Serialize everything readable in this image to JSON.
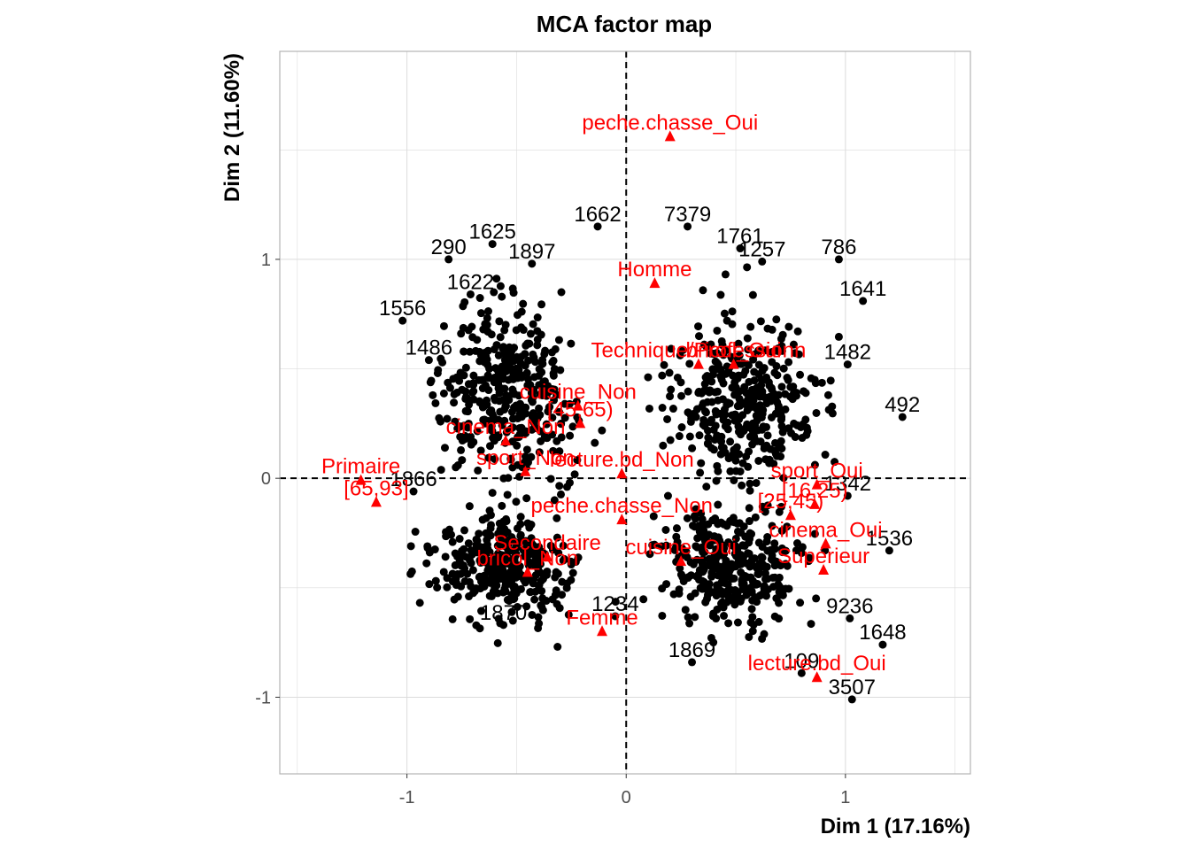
{
  "chart_data": {
    "type": "scatter",
    "title": "MCA factor map",
    "xlabel": "Dim 1 (17.16%)",
    "ylabel": "Dim 2 (11.60%)",
    "xlim": [
      -1.58,
      1.57
    ],
    "ylim": [
      -1.35,
      1.95
    ],
    "xticks": [
      -1,
      0,
      1
    ],
    "yticks": [
      -1,
      0,
      1
    ],
    "reference_lines": {
      "x": 0,
      "y": 0,
      "style": "dashed"
    },
    "grid": true,
    "colors": {
      "individuals": "#000000",
      "categories": "#ff0000",
      "grid": "#dcdcdc",
      "panel_border": "#b3b3b3"
    },
    "categories": [
      {
        "label": "peche.chasse_Oui",
        "x": 0.2,
        "y": 1.56
      },
      {
        "label": "Homme",
        "x": 0.13,
        "y": 0.89
      },
      {
        "label": "Technique/Professionn",
        "x": 0.33,
        "y": 0.52
      },
      {
        "label": "bricol_Oui",
        "x": 0.49,
        "y": 0.52
      },
      {
        "label": "cuisine_Non",
        "x": -0.22,
        "y": 0.33
      },
      {
        "label": "[45,65)",
        "x": -0.21,
        "y": 0.25
      },
      {
        "label": "cinema_Non",
        "x": -0.55,
        "y": 0.17
      },
      {
        "label": "sport_Non",
        "x": -0.46,
        "y": 0.03
      },
      {
        "label": "lecture.bd_Non",
        "x": -0.02,
        "y": 0.02
      },
      {
        "label": "Primaire",
        "x": -1.21,
        "y": -0.01
      },
      {
        "label": "[65,93]",
        "x": -1.14,
        "y": -0.11
      },
      {
        "label": "sport_Oui",
        "x": 0.87,
        "y": -0.03
      },
      {
        "label": "[16,25)",
        "x": 0.86,
        "y": -0.12
      },
      {
        "label": "[25,45)",
        "x": 0.75,
        "y": -0.17
      },
      {
        "label": "peche.chasse_Non",
        "x": -0.02,
        "y": -0.19
      },
      {
        "label": "Secondaire",
        "x": -0.36,
        "y": -0.36
      },
      {
        "label": "cinema_Oui",
        "x": 0.91,
        "y": -0.3
      },
      {
        "label": "bricol_Non",
        "x": -0.45,
        "y": -0.43
      },
      {
        "label": "cuisine_Oui",
        "x": 0.25,
        "y": -0.38
      },
      {
        "label": "Supérieur",
        "x": 0.9,
        "y": -0.42
      },
      {
        "label": "Femme",
        "x": -0.11,
        "y": -0.7
      },
      {
        "label": "lecture.bd_Oui",
        "x": 0.87,
        "y": -0.91
      }
    ],
    "labelled_individuals": [
      {
        "label": "1662",
        "x": -0.13,
        "y": 1.15
      },
      {
        "label": "7379",
        "x": 0.28,
        "y": 1.15
      },
      {
        "label": "1625",
        "x": -0.61,
        "y": 1.07
      },
      {
        "label": "1761",
        "x": 0.52,
        "y": 1.05
      },
      {
        "label": "290",
        "x": -0.81,
        "y": 1.0
      },
      {
        "label": "1897",
        "x": -0.43,
        "y": 0.98
      },
      {
        "label": "786",
        "x": 0.97,
        "y": 1.0
      },
      {
        "label": "1257",
        "x": 0.62,
        "y": 0.99
      },
      {
        "label": "1622",
        "x": -0.71,
        "y": 0.84
      },
      {
        "label": "1641",
        "x": 1.08,
        "y": 0.81
      },
      {
        "label": "1556",
        "x": -1.02,
        "y": 0.72
      },
      {
        "label": "1486",
        "x": -0.9,
        "y": 0.54
      },
      {
        "label": "1482",
        "x": 1.01,
        "y": 0.52
      },
      {
        "label": "492",
        "x": 1.26,
        "y": 0.28
      },
      {
        "label": "1866",
        "x": -0.97,
        "y": -0.06
      },
      {
        "label": "1342",
        "x": 1.01,
        "y": -0.08
      },
      {
        "label": "1536",
        "x": 1.2,
        "y": -0.33
      },
      {
        "label": "1234",
        "x": -0.05,
        "y": -0.63
      },
      {
        "label": "1870",
        "x": -0.56,
        "y": -0.67
      },
      {
        "label": "9236",
        "x": 1.02,
        "y": -0.64
      },
      {
        "label": "1648",
        "x": 1.17,
        "y": -0.76
      },
      {
        "label": "1869",
        "x": 0.3,
        "y": -0.84
      },
      {
        "label": "109",
        "x": 0.8,
        "y": -0.89
      },
      {
        "label": "3507",
        "x": 1.03,
        "y": -1.01
      }
    ]
  }
}
